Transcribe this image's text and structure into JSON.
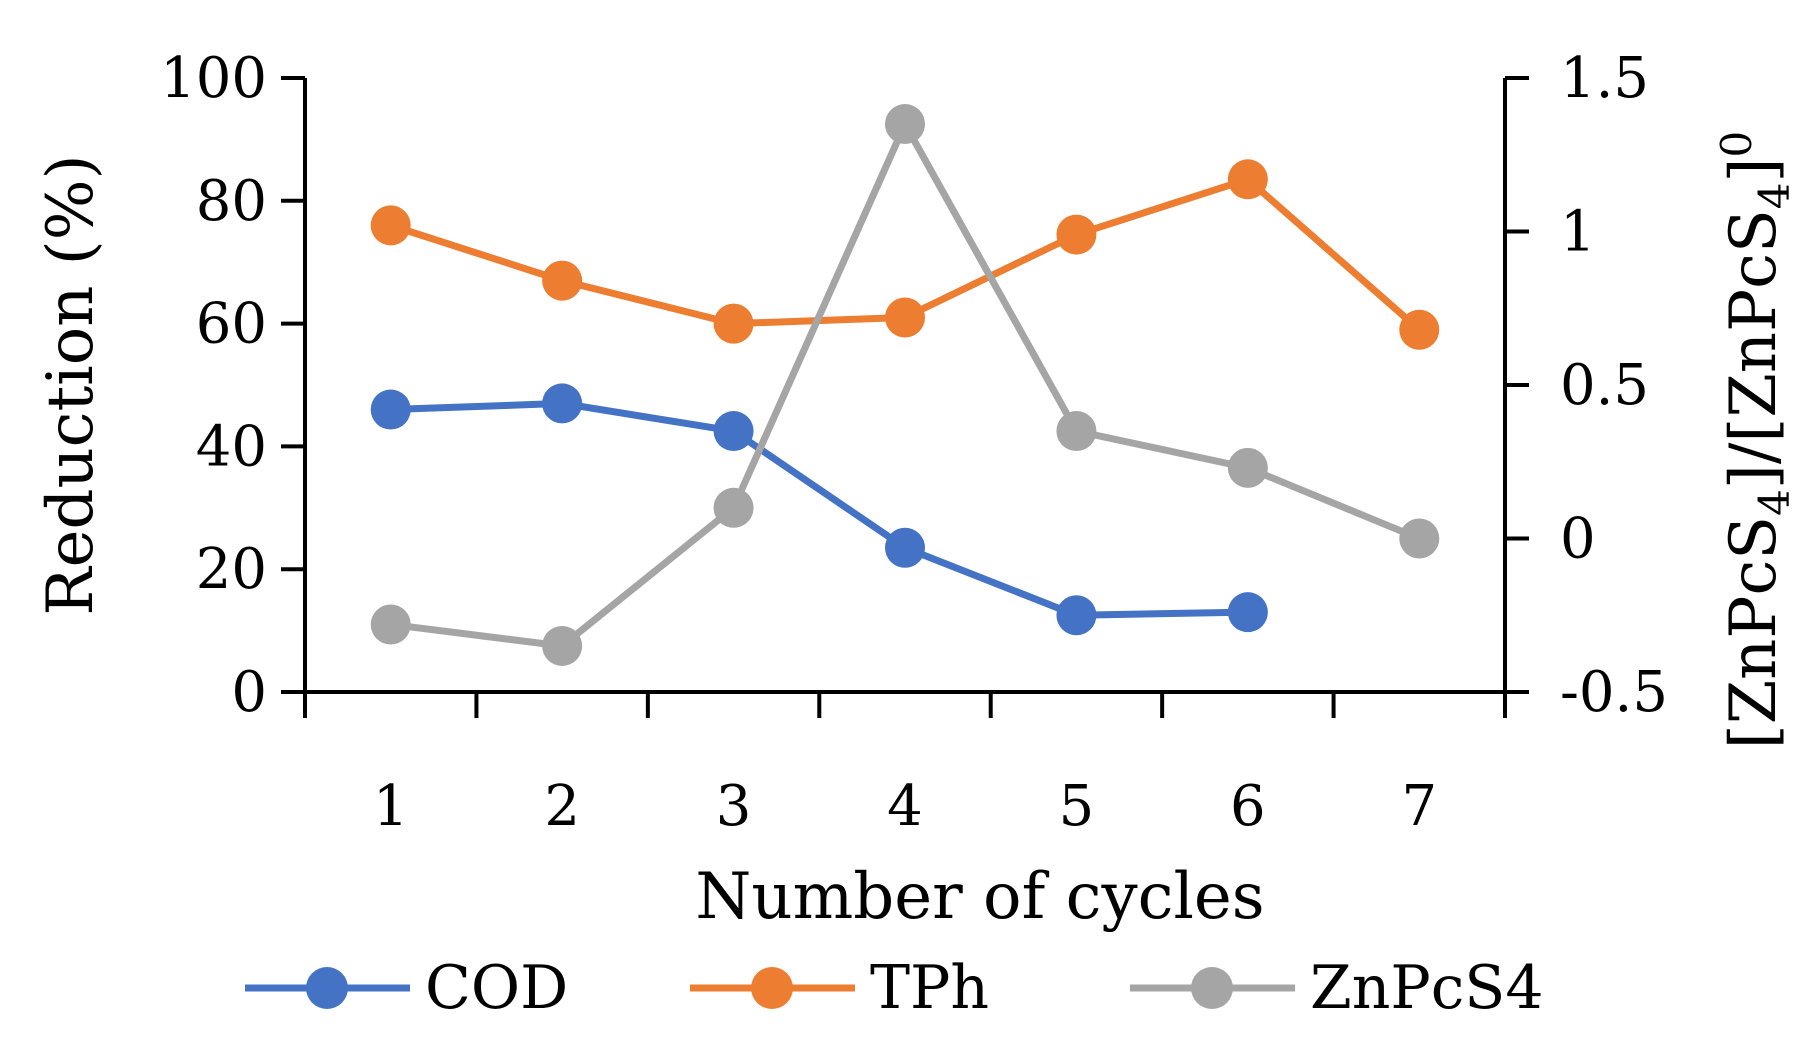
{
  "chart_data": {
    "type": "line",
    "title": "",
    "xlabel": "Number of cycles",
    "ylabel": "Reduction (%)",
    "y2label_parts": [
      "[ZnPcS",
      "4",
      "]/[ZnPcS",
      "4",
      "]",
      "0"
    ],
    "categories": [
      "1",
      "2",
      "3",
      "4",
      "5",
      "6",
      "7"
    ],
    "ylim": [
      0,
      100
    ],
    "yticks": [
      "0",
      "20",
      "40",
      "60",
      "80",
      "100"
    ],
    "y2lim": [
      -0.5,
      1.5
    ],
    "y2ticks": [
      "-0.5",
      "0",
      "0.5",
      "1",
      "1.5"
    ],
    "grid": false,
    "legend_position": "bottom",
    "series": [
      {
        "name": "COD",
        "axis": "left",
        "color": "#4472C4",
        "values": [
          46,
          47,
          42.5,
          23.5,
          12.5,
          13,
          null
        ]
      },
      {
        "name": "TPh",
        "axis": "left",
        "color": "#ED7D31",
        "values": [
          76,
          67,
          60,
          61,
          74.5,
          83.5,
          59
        ]
      },
      {
        "name": "ZnPcS4",
        "axis": "right",
        "color": "#A5A5A5",
        "values": [
          -0.28,
          -0.35,
          0.1,
          1.35,
          0.35,
          0.23,
          0.0
        ]
      }
    ]
  }
}
